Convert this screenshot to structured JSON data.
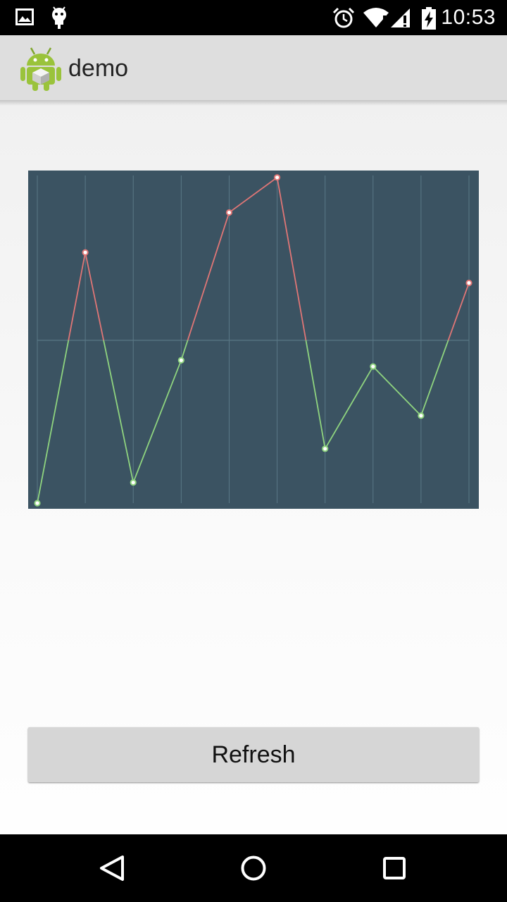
{
  "status_bar": {
    "time": "10:53",
    "icons": [
      "image-notification-icon",
      "android-notification-icon",
      "alarm-icon",
      "wifi-icon",
      "signal-icon",
      "battery-charging-icon"
    ]
  },
  "action_bar": {
    "title": "demo",
    "app_icon": "android-robot-icon"
  },
  "chart_data": {
    "type": "line",
    "title": "",
    "xlabel": "",
    "ylabel": "",
    "grid": true,
    "x": [
      0,
      1,
      2,
      3,
      4,
      5,
      6,
      7,
      8,
      9
    ],
    "values": [
      0.0,
      76.5,
      6.3,
      43.6,
      88.7,
      99.4,
      16.6,
      41.7,
      26.7,
      67.2
    ],
    "ylim": [
      0,
      100
    ],
    "baseline": 49.7,
    "colors": {
      "background": "#3b5362",
      "grid": "#5a7886",
      "above_baseline": "#e07676",
      "below_baseline": "#8fd47f",
      "point_fill": "#ffffff"
    }
  },
  "refresh_button": {
    "label": "Refresh"
  },
  "nav_bar": {
    "buttons": [
      "back-icon",
      "home-icon",
      "recents-icon"
    ]
  }
}
